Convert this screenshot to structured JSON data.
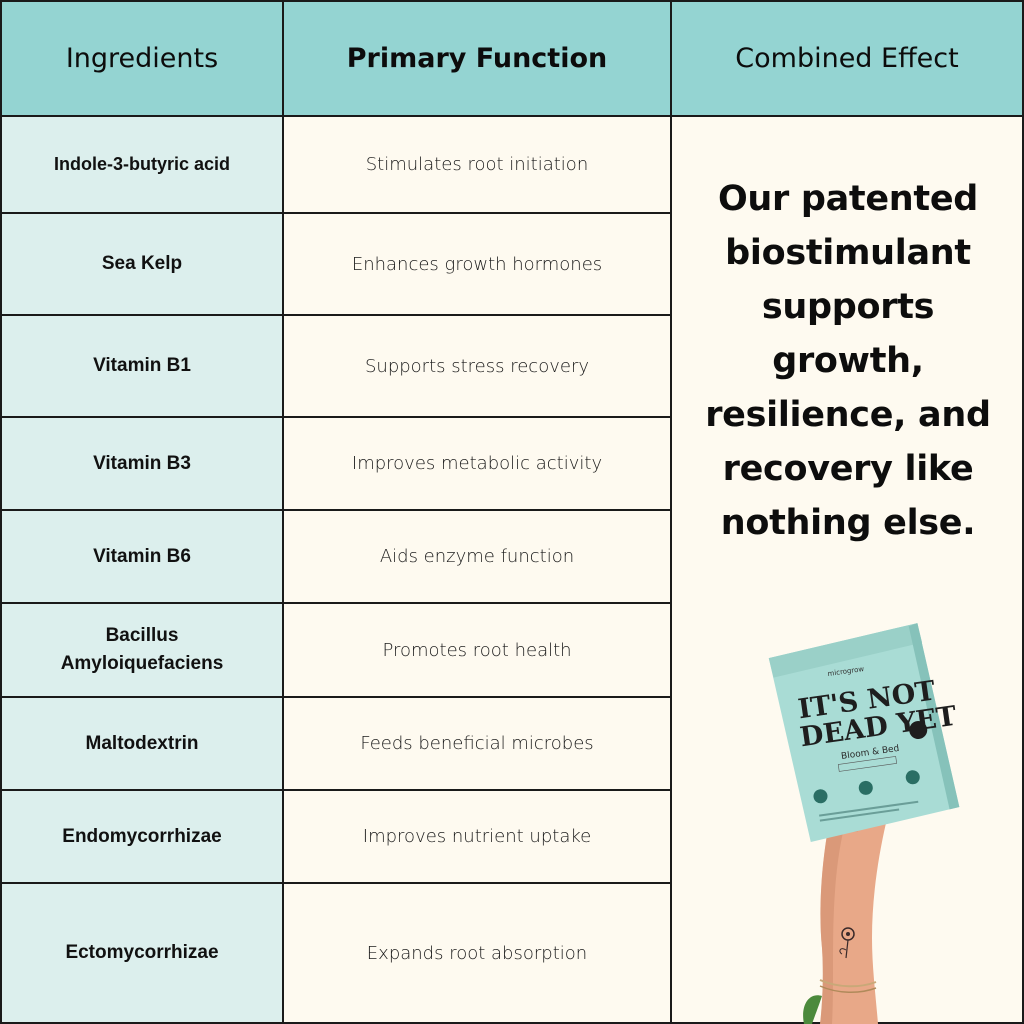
{
  "headers": {
    "ingredients": "Ingredients",
    "primary_function": "Primary Function",
    "combined_effect": "Combined Effect"
  },
  "rows": [
    {
      "ingredient": "Indole-3-butyric acid",
      "function": "Stimulates root initiation"
    },
    {
      "ingredient": "Sea Kelp",
      "function": "Enhances growth hormones"
    },
    {
      "ingredient": "Vitamin B1",
      "function": "Supports stress recovery"
    },
    {
      "ingredient": "Vitamin B3",
      "function": "Improves metabolic activity"
    },
    {
      "ingredient": "Vitamin B6",
      "function": "Aids enzyme function"
    },
    {
      "ingredient_line1": "Bacillus",
      "ingredient_line2": "Amyloiquefaciens",
      "function": "Promotes root health"
    },
    {
      "ingredient": "Maltodextrin",
      "function": "Feeds beneficial microbes"
    },
    {
      "ingredient": "Endomycorrhizae",
      "function": "Improves nutrient uptake"
    },
    {
      "ingredient": "Ectomycorrhizae",
      "function": "Expands root absorption"
    }
  ],
  "combined_effect_text": "Our patented biostimulant supports growth, resilience, and recovery like nothing else.",
  "product": {
    "brand": "microgrow",
    "title_line1": "IT'S NOT",
    "title_line2": "DEAD YET",
    "variant": "Bloom & Bed",
    "colors": {
      "bag": "#a9dcd5",
      "bag_shadow": "#86c2ba",
      "title": "#1e1e1e",
      "skin": "#e8a888"
    }
  },
  "colors": {
    "header": "#94d4d2",
    "ingredient_bg": "#dcefed",
    "function_bg": "#fefaf0",
    "border": "#1a1a1a"
  }
}
